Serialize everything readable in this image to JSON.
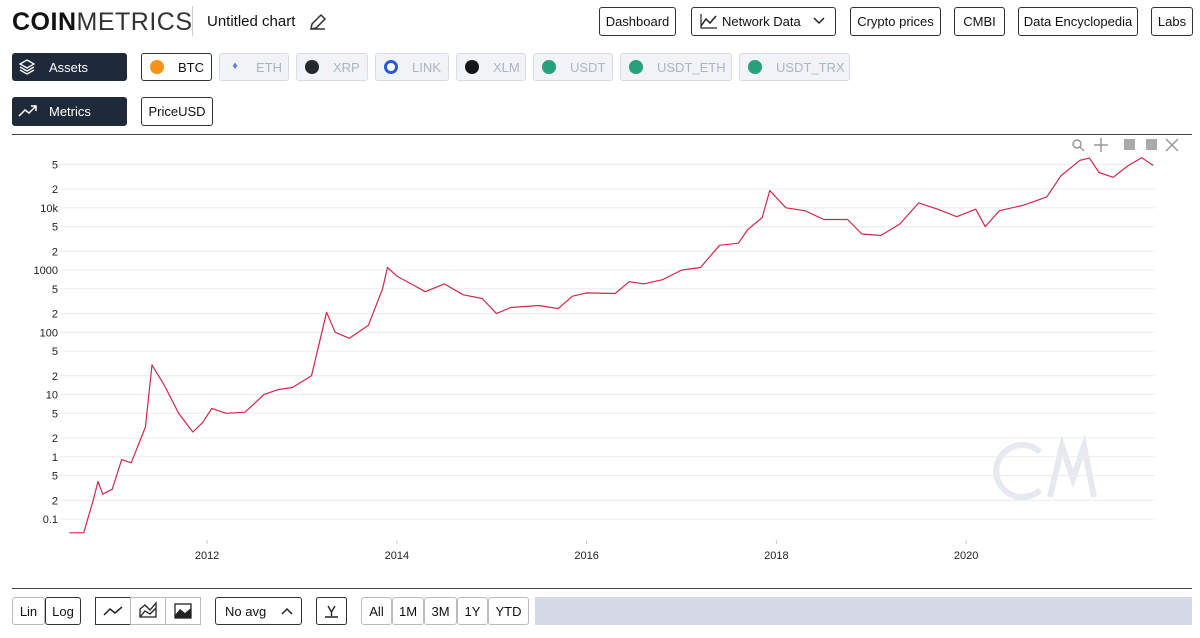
{
  "header": {
    "logo_bold": "COIN",
    "logo_light": "METRICS",
    "chart_title": "Untitled chart",
    "nav": [
      "Dashboard",
      "Network Data",
      "Crypto prices",
      "CMBI",
      "Data Encyclopedia",
      "Labs"
    ]
  },
  "assets": {
    "label": "Assets",
    "items": [
      "BTC",
      "ETH",
      "XRP",
      "LINK",
      "XLM",
      "USDT",
      "USDT_ETH",
      "USDT_TRX"
    ]
  },
  "metrics": {
    "label": "Metrics",
    "items": [
      "PriceUSD"
    ]
  },
  "chart_data": {
    "type": "line",
    "log_scale": true,
    "grid": true,
    "x": [
      2010.55,
      2010.7,
      2010.8,
      2010.85,
      2010.9,
      2011.0,
      2011.1,
      2011.2,
      2011.35,
      2011.42,
      2011.55,
      2011.7,
      2011.85,
      2011.95,
      2012.05,
      2012.2,
      2012.4,
      2012.6,
      2012.75,
      2012.9,
      2013.1,
      2013.26,
      2013.35,
      2013.5,
      2013.7,
      2013.85,
      2013.9,
      2014.0,
      2014.15,
      2014.3,
      2014.5,
      2014.7,
      2014.9,
      2015.05,
      2015.2,
      2015.5,
      2015.7,
      2015.85,
      2016.0,
      2016.3,
      2016.45,
      2016.6,
      2016.8,
      2017.0,
      2017.2,
      2017.4,
      2017.6,
      2017.7,
      2017.85,
      2017.93,
      2018.1,
      2018.3,
      2018.5,
      2018.75,
      2018.9,
      2019.1,
      2019.3,
      2019.5,
      2019.7,
      2019.9,
      2020.1,
      2020.2,
      2020.35,
      2020.6,
      2020.85,
      2021.0,
      2021.2,
      2021.3,
      2021.4,
      2021.55,
      2021.7,
      2021.85,
      2021.97
    ],
    "series": [
      {
        "name": "PriceUSD",
        "color": "#d0284a",
        "values": [
          0.06,
          0.06,
          0.2,
          0.4,
          0.25,
          0.3,
          0.9,
          0.8,
          3,
          30,
          14,
          5,
          2.5,
          3.5,
          6,
          5,
          5.2,
          10,
          12,
          13,
          20,
          210,
          100,
          80,
          130,
          500,
          1100,
          800,
          600,
          450,
          600,
          400,
          350,
          200,
          250,
          270,
          240,
          380,
          430,
          420,
          650,
          600,
          700,
          1000,
          1100,
          2500,
          2700,
          4500,
          7000,
          19000,
          10000,
          9000,
          6500,
          6500,
          3800,
          3600,
          5500,
          12000,
          9500,
          7200,
          9500,
          5000,
          9000,
          11000,
          15000,
          33000,
          58000,
          63000,
          37000,
          31000,
          47000,
          64000,
          48000
        ]
      }
    ],
    "xlim": [
      2010.45,
      2021.99
    ],
    "xticks": [
      2012,
      2014,
      2016,
      2018,
      2020
    ],
    "ylim": [
      0.046,
      85000
    ],
    "yticks": [
      0.1,
      {
        "value": 0.2,
        "label": "2"
      },
      {
        "value": 0.5,
        "label": "5"
      },
      1,
      {
        "value": 2,
        "label": "2"
      },
      {
        "value": 5,
        "label": "5"
      },
      10,
      {
        "value": 20,
        "label": "2"
      },
      {
        "value": 50,
        "label": "5"
      },
      100,
      {
        "value": 200,
        "label": "2"
      },
      {
        "value": 500,
        "label": "5"
      },
      1000,
      {
        "value": 2000,
        "label": "2"
      },
      {
        "value": 5000,
        "label": "5"
      },
      {
        "value": 10000,
        "label": "10k"
      },
      {
        "value": 20000,
        "label": "2"
      },
      {
        "value": 50000,
        "label": "5"
      }
    ]
  },
  "controls": {
    "scale": [
      "Lin",
      "Log"
    ],
    "avg": "No avg",
    "ranges": [
      "All",
      "1M",
      "3M",
      "1Y",
      "YTD"
    ]
  }
}
